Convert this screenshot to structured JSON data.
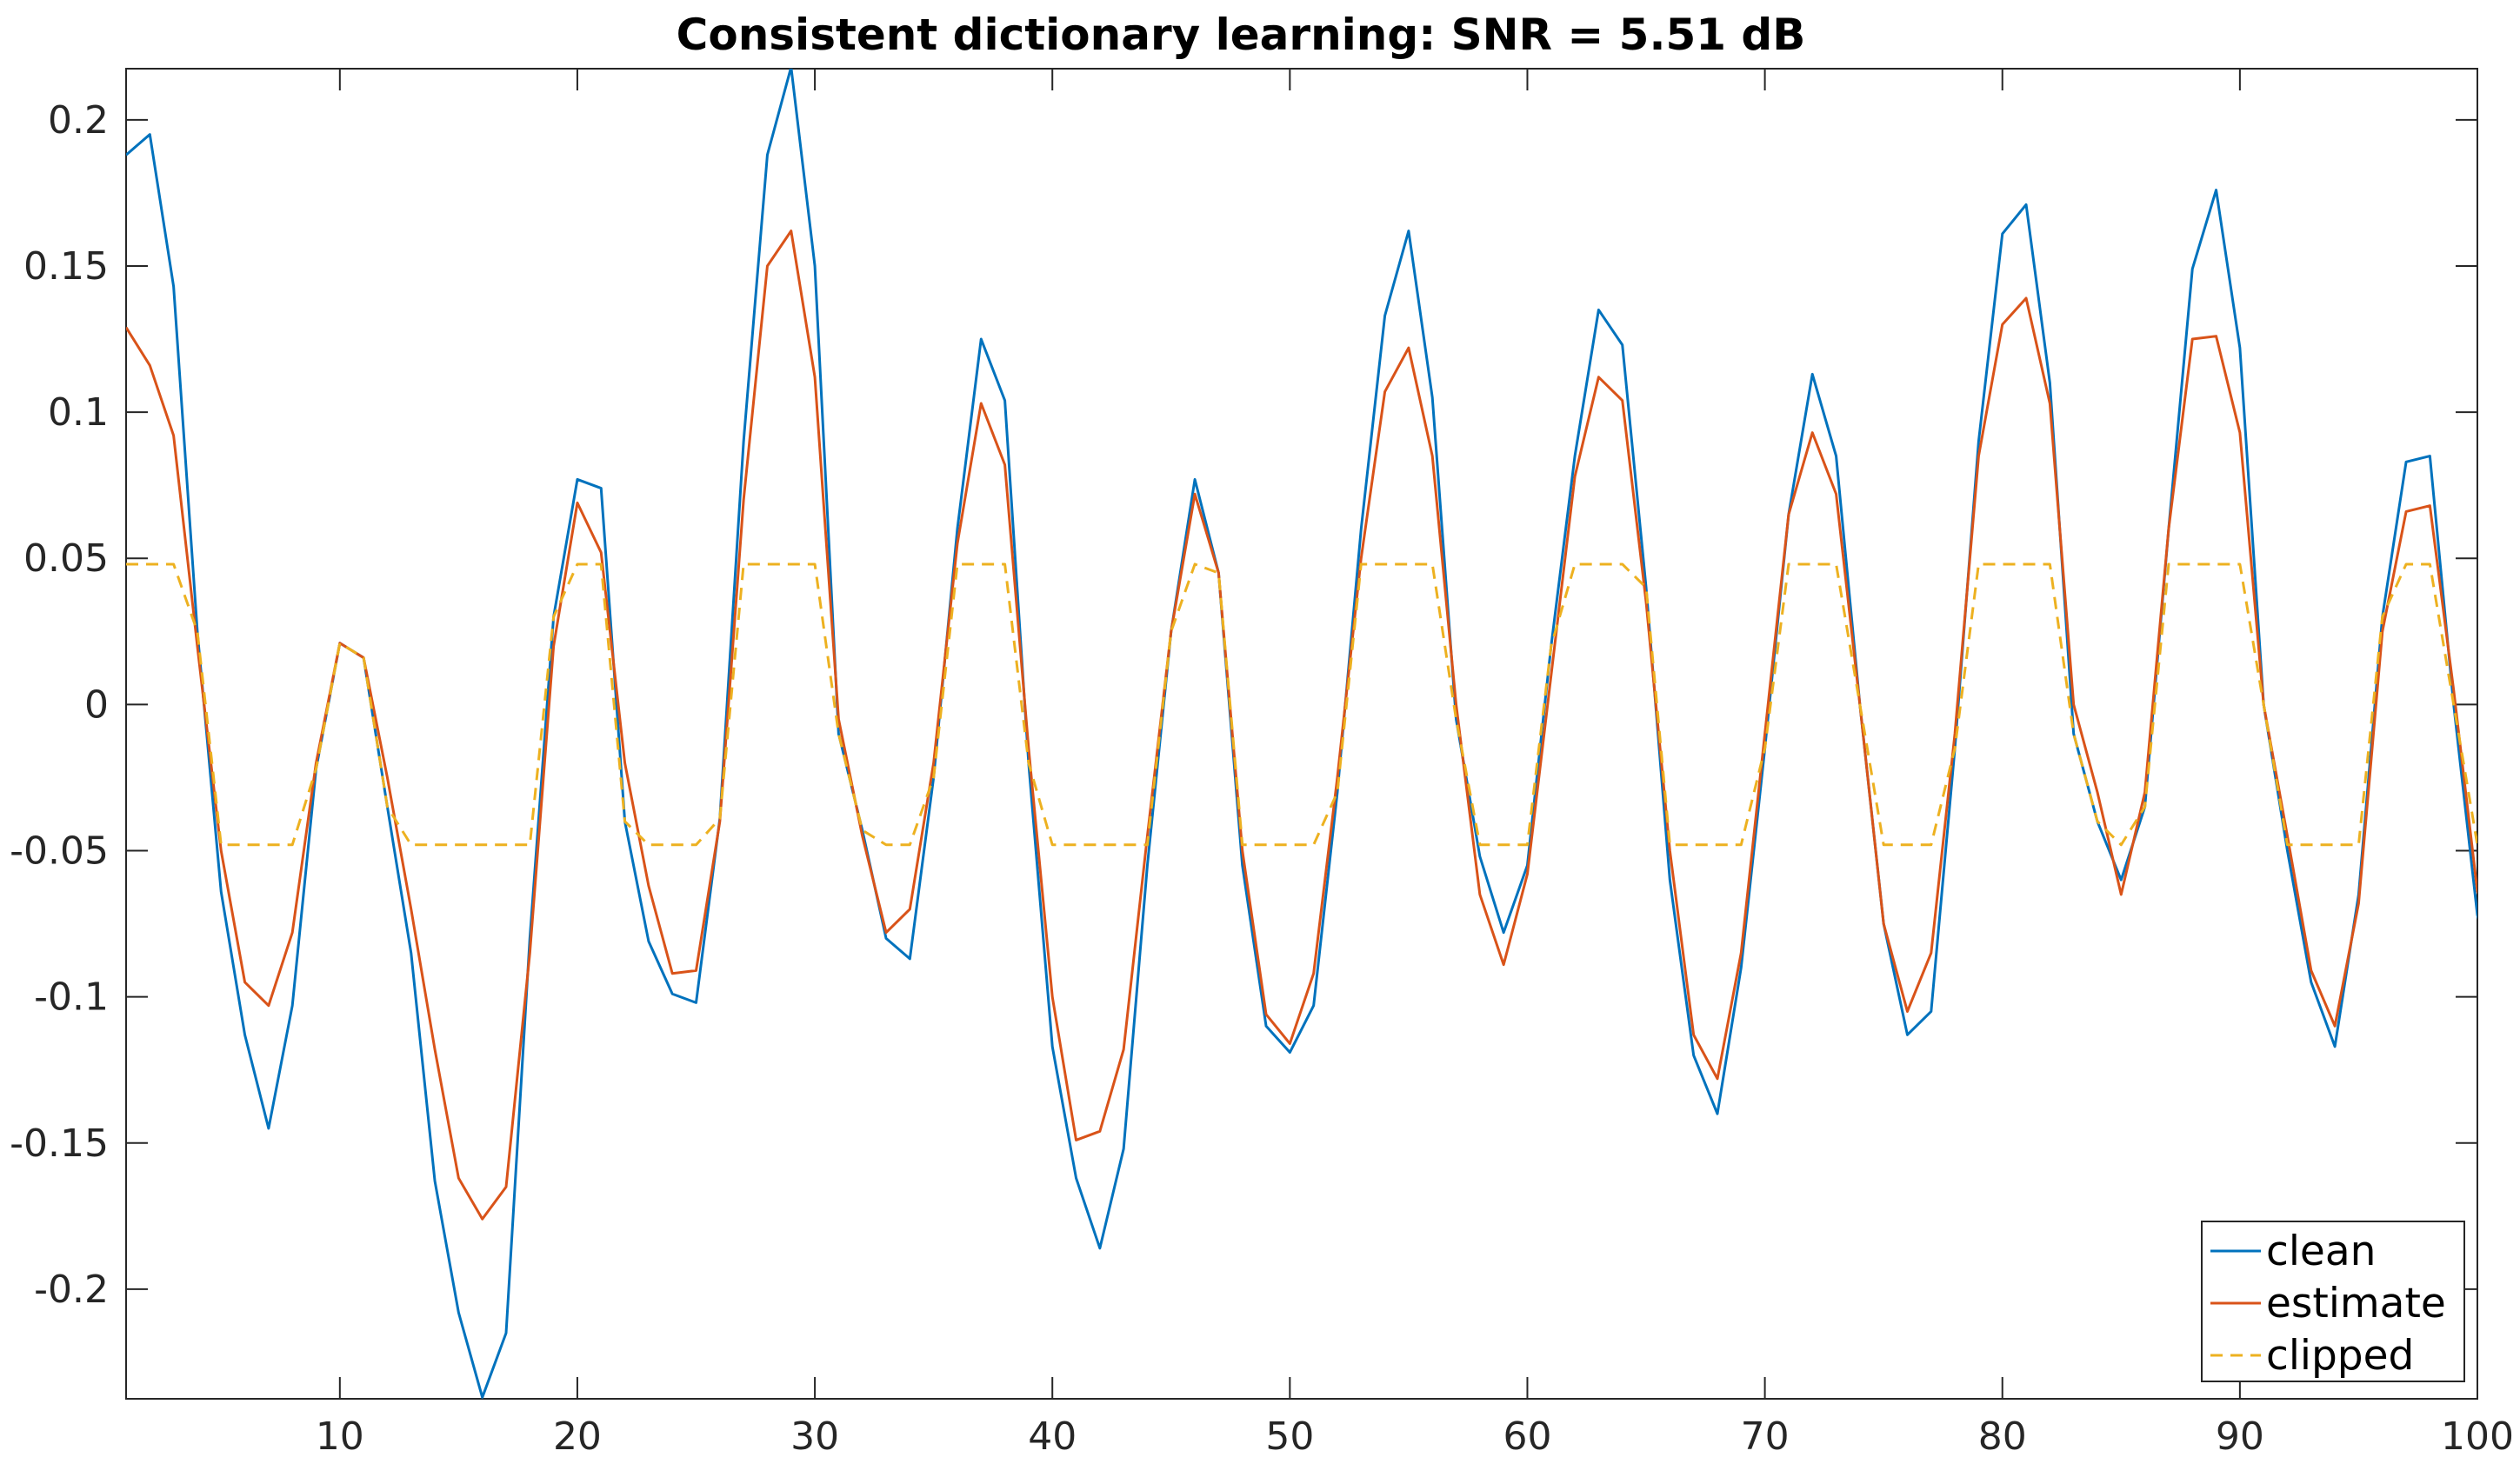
{
  "chart_data": {
    "type": "line",
    "title": "Consistent dictionary learning: SNR = 5.51 dB",
    "xlabel": "",
    "ylabel": "",
    "xlim": [
      1,
      100
    ],
    "ylim": [
      -0.2375,
      0.2175
    ],
    "x_ticks": [
      10,
      20,
      30,
      40,
      50,
      60,
      70,
      80,
      90,
      100
    ],
    "x_tick_labels": [
      "10",
      "20",
      "30",
      "40",
      "50",
      "60",
      "70",
      "80",
      "90",
      "100"
    ],
    "y_ticks": [
      0.2,
      0.15,
      0.1,
      0.05,
      0,
      -0.05,
      -0.1,
      -0.15,
      -0.2
    ],
    "y_tick_labels": [
      "0.2",
      "0.15",
      "0.1",
      "0.05",
      "0",
      "-0.05",
      "-0.1",
      "-0.15",
      "-0.2"
    ],
    "grid": false,
    "legend_position": "bottom-right",
    "x_start": 1,
    "series": [
      {
        "name": "clean",
        "color": "#0072BD",
        "dash": "solid",
        "values": [
          0.188,
          0.195,
          0.143,
          0.025,
          -0.064,
          -0.113,
          -0.145,
          -0.103,
          -0.022,
          0.021,
          0.016,
          -0.035,
          -0.085,
          -0.163,
          -0.208,
          -0.237,
          -0.215,
          -0.08,
          0.03,
          0.077,
          0.074,
          -0.04,
          -0.081,
          -0.099,
          -0.102,
          -0.039,
          0.09,
          0.188,
          0.218,
          0.15,
          -0.01,
          -0.043,
          -0.08,
          -0.087,
          -0.025,
          0.06,
          0.125,
          0.104,
          -0.02,
          -0.117,
          -0.162,
          -0.186,
          -0.152,
          -0.055,
          0.025,
          0.077,
          0.045,
          -0.055,
          -0.11,
          -0.119,
          -0.103,
          -0.03,
          0.06,
          0.133,
          0.162,
          0.105,
          -0.005,
          -0.052,
          -0.078,
          -0.055,
          0.02,
          0.085,
          0.135,
          0.123,
          0.04,
          -0.06,
          -0.12,
          -0.14,
          -0.09,
          -0.015,
          0.065,
          0.113,
          0.085,
          0.0,
          -0.075,
          -0.113,
          -0.105,
          -0.015,
          0.09,
          0.161,
          0.171,
          0.11,
          -0.01,
          -0.04,
          -0.06,
          -0.035,
          0.06,
          0.149,
          0.176,
          0.122,
          0.0,
          -0.05,
          -0.095,
          -0.117,
          -0.065,
          0.03,
          0.083,
          0.085,
          0.0,
          -0.072,
          -0.101
        ]
      },
      {
        "name": "estimate",
        "color": "#D95319",
        "dash": "solid",
        "values": [
          0.129,
          0.116,
          0.092,
          0.02,
          -0.05,
          -0.095,
          -0.103,
          -0.078,
          -0.02,
          0.021,
          0.016,
          -0.025,
          -0.07,
          -0.118,
          -0.162,
          -0.176,
          -0.165,
          -0.085,
          0.02,
          0.069,
          0.052,
          -0.02,
          -0.062,
          -0.092,
          -0.091,
          -0.04,
          0.07,
          0.15,
          0.162,
          0.112,
          -0.005,
          -0.045,
          -0.078,
          -0.07,
          -0.02,
          0.055,
          0.103,
          0.082,
          -0.015,
          -0.1,
          -0.149,
          -0.146,
          -0.118,
          -0.045,
          0.025,
          0.072,
          0.045,
          -0.05,
          -0.106,
          -0.116,
          -0.092,
          -0.025,
          0.05,
          0.107,
          0.122,
          0.085,
          0.0,
          -0.065,
          -0.089,
          -0.058,
          0.01,
          0.078,
          0.112,
          0.104,
          0.035,
          -0.05,
          -0.113,
          -0.128,
          -0.085,
          -0.01,
          0.065,
          0.093,
          0.072,
          0.0,
          -0.075,
          -0.105,
          -0.085,
          -0.01,
          0.085,
          0.13,
          0.139,
          0.103,
          0.0,
          -0.03,
          -0.065,
          -0.03,
          0.06,
          0.125,
          0.126,
          0.093,
          0.0,
          -0.045,
          -0.091,
          -0.11,
          -0.068,
          0.025,
          0.066,
          0.068,
          0.005,
          -0.064,
          -0.08
        ]
      },
      {
        "name": "clipped",
        "color": "#EDB120",
        "dash": "dashed",
        "values": [
          0.048,
          0.048,
          0.048,
          0.025,
          -0.048,
          -0.048,
          -0.048,
          -0.048,
          -0.022,
          0.021,
          0.016,
          -0.035,
          -0.048,
          -0.048,
          -0.048,
          -0.048,
          -0.048,
          -0.048,
          0.03,
          0.048,
          0.048,
          -0.04,
          -0.048,
          -0.048,
          -0.048,
          -0.039,
          0.048,
          0.048,
          0.048,
          0.048,
          -0.01,
          -0.043,
          -0.048,
          -0.048,
          -0.025,
          0.048,
          0.048,
          0.048,
          -0.02,
          -0.048,
          -0.048,
          -0.048,
          -0.048,
          -0.048,
          0.025,
          0.048,
          0.045,
          -0.048,
          -0.048,
          -0.048,
          -0.048,
          -0.03,
          0.048,
          0.048,
          0.048,
          0.048,
          -0.005,
          -0.048,
          -0.048,
          -0.048,
          0.02,
          0.048,
          0.048,
          0.048,
          0.04,
          -0.048,
          -0.048,
          -0.048,
          -0.048,
          -0.015,
          0.048,
          0.048,
          0.048,
          0.0,
          -0.048,
          -0.048,
          -0.048,
          -0.015,
          0.048,
          0.048,
          0.048,
          0.048,
          -0.01,
          -0.04,
          -0.048,
          -0.035,
          0.048,
          0.048,
          0.048,
          0.048,
          0.0,
          -0.048,
          -0.048,
          -0.048,
          -0.048,
          0.03,
          0.048,
          0.048,
          0.0,
          -0.048,
          -0.048
        ]
      }
    ]
  }
}
